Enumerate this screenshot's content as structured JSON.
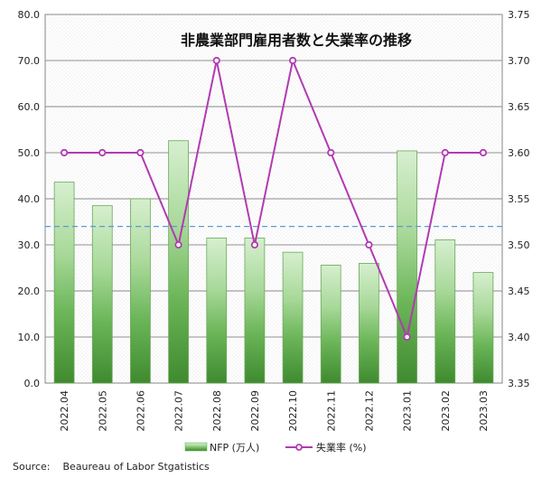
{
  "source_label": "Source:",
  "source_text": "Beaureau of Labor Stgatistics",
  "chart_data": {
    "type": "bar",
    "title": "非農業部門雇用者数と失業率の推移",
    "categories": [
      "2022.04",
      "2022.05",
      "2022.06",
      "2022.07",
      "2022.08",
      "2022.09",
      "2022.10",
      "2022.11",
      "2022.12",
      "2023.01",
      "2023.02",
      "2023.03"
    ],
    "series": [
      {
        "name": "NFP (万人)",
        "type": "bar",
        "axis": "left",
        "color": "#5aa645",
        "values": [
          43.6,
          38.5,
          40.0,
          52.6,
          31.5,
          31.5,
          28.4,
          25.6,
          26.0,
          50.4,
          31.1,
          24.0
        ]
      },
      {
        "name": "失業率 (%)",
        "type": "line",
        "axis": "right",
        "color": "#b23ab2",
        "values": [
          3.6,
          3.6,
          3.6,
          3.5,
          3.7,
          3.5,
          3.7,
          3.6,
          3.5,
          3.4,
          3.6,
          3.6
        ]
      }
    ],
    "reference_line": {
      "axis": "left",
      "value": 34.0,
      "style": "dashed",
      "color": "#5b9bd5"
    },
    "ylim_left": [
      0,
      80
    ],
    "ylim_right": [
      3.35,
      3.75
    ],
    "yticks_left": [
      "0.0",
      "10.0",
      "20.0",
      "30.0",
      "40.0",
      "50.0",
      "60.0",
      "70.0",
      "80.0"
    ],
    "yticks_right": [
      "3.35",
      "3.40",
      "3.45",
      "3.50",
      "3.55",
      "3.60",
      "3.65",
      "3.70",
      "3.75"
    ],
    "grid": true,
    "legend": "bottom-center"
  }
}
